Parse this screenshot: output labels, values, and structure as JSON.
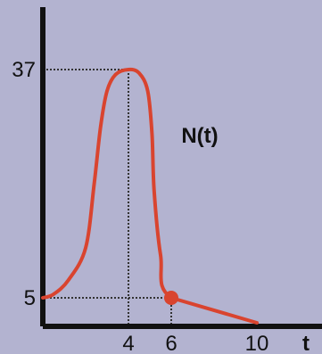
{
  "chart_data": {
    "type": "line",
    "title": "",
    "xlabel": "t",
    "ylabel": "",
    "curve_label": "N(t)",
    "x_ticks": [
      {
        "value": 4,
        "label": "4"
      },
      {
        "value": 6,
        "label": "6"
      },
      {
        "value": 10,
        "label": "10"
      }
    ],
    "y_ticks": [
      {
        "value": 5,
        "label": "5"
      },
      {
        "value": 37,
        "label": "37"
      }
    ],
    "series": [
      {
        "color": "#d9442f",
        "points": [
          [
            0,
            5
          ],
          [
            0.5,
            5.5
          ],
          [
            1.2,
            7.5
          ],
          [
            2.0,
            12
          ],
          [
            2.4,
            21
          ],
          [
            2.7,
            29
          ],
          [
            3.0,
            34
          ],
          [
            3.4,
            36.3
          ],
          [
            4.0,
            37
          ],
          [
            4.5,
            36.5
          ],
          [
            4.9,
            34
          ],
          [
            5.1,
            28
          ],
          [
            5.2,
            20
          ],
          [
            5.5,
            11
          ],
          [
            6.0,
            5
          ],
          [
            10.0,
            1.5
          ]
        ]
      }
    ],
    "highlight_point": {
      "x": 6,
      "y": 5
    },
    "guides": [
      {
        "x": 4,
        "y": 37
      },
      {
        "x": 6,
        "y": 5
      }
    ],
    "grid": false
  }
}
